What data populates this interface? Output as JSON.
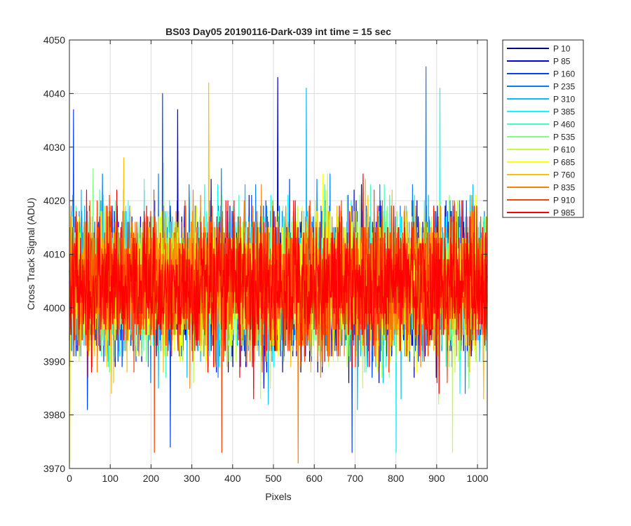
{
  "chart_data": {
    "type": "line",
    "title": "BS03 Day05 20190116-Dark-039 int time = 15 sec",
    "xlabel": "Pixels",
    "ylabel": "Cross Track Signal (ADU)",
    "xlim": [
      0,
      1024
    ],
    "ylim": [
      3970,
      4050
    ],
    "xticks": [
      0,
      100,
      200,
      300,
      400,
      500,
      600,
      700,
      800,
      900,
      1000
    ],
    "yticks": [
      3970,
      3980,
      3990,
      4000,
      4010,
      4020,
      4030,
      4040,
      4050
    ],
    "grid": true,
    "legend_position": "outside-top-right",
    "points_per_series": 1024,
    "noise": {
      "mean": 4004.5,
      "std": 6.2,
      "min": 3971,
      "max": 4045
    },
    "series": [
      {
        "name": "P 10",
        "color": "#00008f"
      },
      {
        "name": "P 85",
        "color": "#0000e6"
      },
      {
        "name": "P 160",
        "color": "#0040ff"
      },
      {
        "name": "P 235",
        "color": "#0080ff"
      },
      {
        "name": "P 310",
        "color": "#00bfff"
      },
      {
        "name": "P 385",
        "color": "#00ffff"
      },
      {
        "name": "P 460",
        "color": "#40ffbf"
      },
      {
        "name": "P 535",
        "color": "#80ff80"
      },
      {
        "name": "P 610",
        "color": "#bfff40"
      },
      {
        "name": "P 685",
        "color": "#ffff00"
      },
      {
        "name": "P 760",
        "color": "#ffbf00"
      },
      {
        "name": "P 835",
        "color": "#ff8000"
      },
      {
        "name": "P 910",
        "color": "#ff4000"
      },
      {
        "name": "P 985",
        "color": "#ff0000"
      }
    ],
    "spikes": [
      {
        "series": "P 85",
        "x": 510,
        "y": 4043
      },
      {
        "series": "P 235",
        "x": 873,
        "y": 4045
      },
      {
        "series": "P 760",
        "x": 341,
        "y": 4042
      },
      {
        "series": "P 310",
        "x": 580,
        "y": 4041
      },
      {
        "series": "P 160",
        "x": 228,
        "y": 4040
      },
      {
        "series": "P 385",
        "x": 907,
        "y": 4041
      },
      {
        "series": "P 160",
        "x": 10,
        "y": 4037
      },
      {
        "series": "P 85",
        "x": 265,
        "y": 4037
      },
      {
        "series": "P 685",
        "x": 1,
        "y": 3971
      },
      {
        "series": "P 835",
        "x": 560,
        "y": 3971
      },
      {
        "series": "P 910",
        "x": 208,
        "y": 3973
      },
      {
        "series": "P 910",
        "x": 373,
        "y": 3973
      },
      {
        "series": "P 160",
        "x": 692,
        "y": 3973
      },
      {
        "series": "P 385",
        "x": 800,
        "y": 3973
      },
      {
        "series": "P 610",
        "x": 938,
        "y": 3973
      },
      {
        "series": "P 160",
        "x": 247,
        "y": 3974
      }
    ]
  }
}
